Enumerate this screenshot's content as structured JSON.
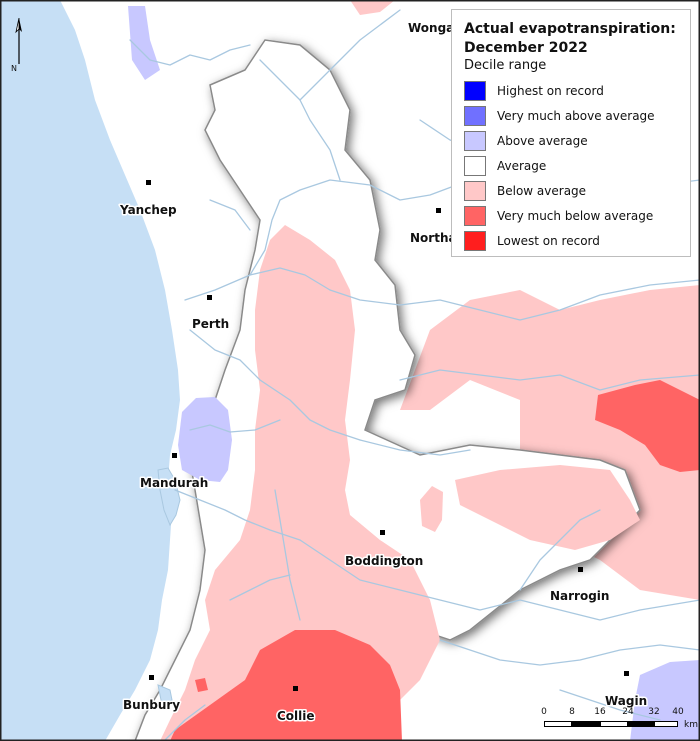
{
  "legend": {
    "title_line1": "Actual evapotranspiration:",
    "title_line2": "December 2022",
    "subtitle": "Decile range",
    "items": [
      {
        "label": "Highest on record",
        "color": "#0000ff"
      },
      {
        "label": "Very much above average",
        "color": "#7070ff"
      },
      {
        "label": "Above average",
        "color": "#c8c8ff"
      },
      {
        "label": "Average",
        "color": "#ffffff"
      },
      {
        "label": "Below average",
        "color": "#ffc8c8"
      },
      {
        "label": "Very much below average",
        "color": "#ff6464"
      },
      {
        "label": "Lowest on record",
        "color": "#ff1e1e"
      }
    ]
  },
  "towns": [
    {
      "name": "Wongan"
    },
    {
      "name": "Yanchep"
    },
    {
      "name": "Northam"
    },
    {
      "name": "Perth"
    },
    {
      "name": "Mandurah"
    },
    {
      "name": "Boddington"
    },
    {
      "name": "Narrogin"
    },
    {
      "name": "Bunbury"
    },
    {
      "name": "Collie"
    },
    {
      "name": "Wagin"
    }
  ],
  "north_arrow": {
    "label": "N"
  },
  "scale_bar": {
    "ticks": [
      "0",
      "8",
      "16",
      "24",
      "32",
      "40"
    ],
    "units": "km"
  },
  "colors": {
    "ocean": "#c6dff5",
    "river": "#a9c8e0",
    "basin_edge": "#8a8a8a"
  }
}
